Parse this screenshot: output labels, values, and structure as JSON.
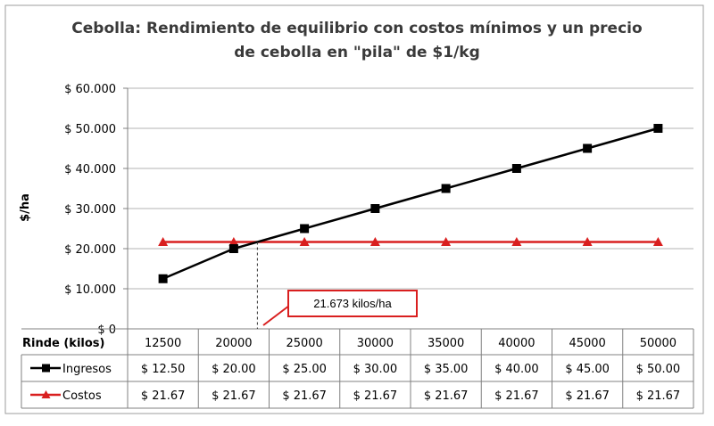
{
  "chart_data": {
    "type": "line",
    "title_line1": "Cebolla: Rendimiento de equilibrio con costos mínimos y un precio",
    "title_line2": "de cebolla en \"pila\" de $1/kg",
    "ylabel": "$/ha",
    "xlabel": "Rinde (kilos)",
    "ylim": [
      0,
      60000
    ],
    "yticks": [
      0,
      10000,
      20000,
      30000,
      40000,
      50000,
      60000
    ],
    "ytick_labels": [
      "$ 0",
      "$ 10.000",
      "$ 20.000",
      "$ 30.000",
      "$ 40.000",
      "$ 50.000",
      "$ 60.000"
    ],
    "grid": true,
    "categories": [
      "12500",
      "20000",
      "25000",
      "30000",
      "35000",
      "40000",
      "45000",
      "50000"
    ],
    "series": [
      {
        "name": "Ingresos",
        "color": "#000000",
        "marker": "square",
        "values": [
          12500,
          20000,
          25000,
          30000,
          35000,
          40000,
          45000,
          50000
        ],
        "table_labels": [
          "$ 12.50",
          "$ 20.00",
          "$ 25.00",
          "$ 30.00",
          "$ 35.00",
          "$ 40.00",
          "$ 45.00",
          "$ 50.00"
        ]
      },
      {
        "name": "Costos",
        "color": "#d91f1f",
        "marker": "triangle",
        "values": [
          21673,
          21673,
          21673,
          21673,
          21673,
          21673,
          21673,
          21673
        ],
        "table_labels": [
          "$ 21.67",
          "$ 21.67",
          "$ 21.67",
          "$ 21.67",
          "$ 21.67",
          "$ 21.67",
          "$ 21.67",
          "$ 21.67"
        ]
      }
    ],
    "annotation": {
      "text": "21.673 kilos/ha",
      "x_value": 21673,
      "y_value": 21673
    },
    "legend": "data-table"
  }
}
